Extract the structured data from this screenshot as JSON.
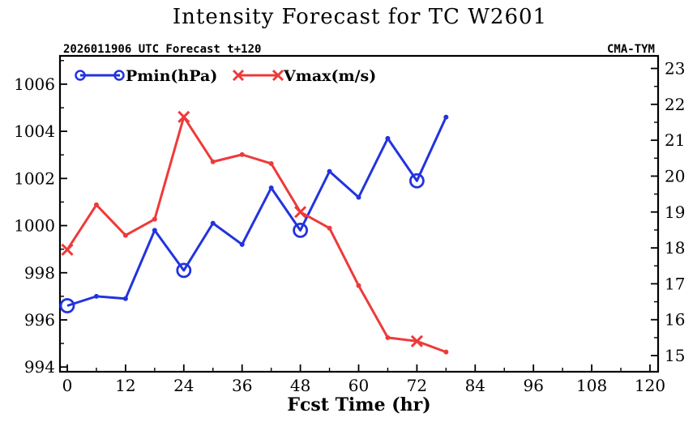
{
  "chart_data": {
    "type": "line",
    "title": "Intensity Forecast for TC W2601",
    "subtitle_left": "2026011906 UTC Forecast t+120",
    "subtitle_right": "CMA-TYM",
    "xlabel": "Fcst Time (hr)",
    "xlim": [
      0,
      120
    ],
    "x_ticks": [
      0,
      12,
      24,
      36,
      48,
      60,
      72,
      84,
      96,
      108,
      120
    ],
    "x": [
      0,
      6,
      12,
      18,
      24,
      30,
      36,
      42,
      48,
      54,
      60,
      66,
      72,
      78
    ],
    "y_left": {
      "ylim": [
        993.8,
        1007.2
      ],
      "ticks": [
        994,
        996,
        998,
        1000,
        1002,
        1004,
        1006
      ]
    },
    "y_right": {
      "ylim": [
        14.55,
        23.35
      ],
      "ticks": [
        15,
        16,
        17,
        18,
        19,
        20,
        21,
        22,
        23
      ]
    },
    "series": [
      {
        "name": "Pmin(hPa)",
        "axis": "left",
        "color": "#2233dd",
        "marker": "circle",
        "marker_x": [
          0,
          24,
          48,
          72
        ],
        "values": [
          996.6,
          997.0,
          996.9,
          999.8,
          998.1,
          1000.1,
          999.2,
          1001.6,
          999.8,
          1002.3,
          1001.2,
          1003.7,
          1001.9,
          1004.6
        ]
      },
      {
        "name": "Vmax(m/s)",
        "axis": "right",
        "color": "#ee3a3a",
        "marker": "x",
        "marker_x": [
          0,
          24,
          48,
          72
        ],
        "values": [
          17.95,
          19.2,
          18.35,
          18.8,
          21.65,
          20.4,
          20.6,
          20.35,
          19.0,
          18.55,
          16.95,
          15.5,
          15.4,
          15.1
        ]
      }
    ]
  }
}
